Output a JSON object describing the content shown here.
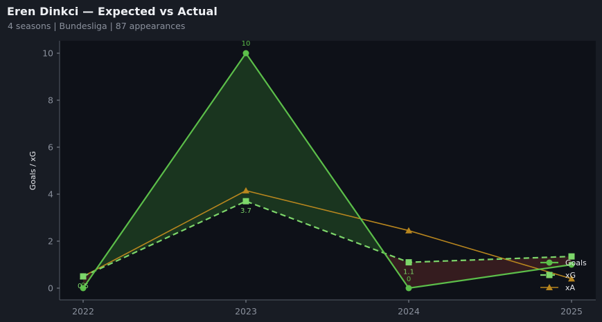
{
  "header": {
    "title": "Eren Dinkci — Expected vs Actual",
    "subtitle": "4 seasons | Bundesliga | 87 appearances"
  },
  "colors": {
    "goals": "#5cbf4a",
    "xg": "#7dd66a",
    "xa": "#b8861e",
    "overperform_fill": "#1c3a20",
    "underperform_fill": "#3a1e20",
    "background": "#181c24",
    "plot_background": "#0e1118"
  },
  "chart_data": {
    "type": "line",
    "title": "Eren Dinkci — Expected vs Actual",
    "subtitle": "4 seasons | Bundesliga | 87 appearances",
    "xlabel": "",
    "ylabel": "Goals / xG",
    "categories": [
      "2022",
      "2023",
      "2024",
      "2025"
    ],
    "ylim": [
      -0.5,
      10.5
    ],
    "yticks": [
      0,
      2,
      4,
      6,
      8,
      10
    ],
    "grid": false,
    "legend_position": "lower right",
    "series": [
      {
        "name": "Goals",
        "values": [
          0,
          10,
          0,
          1.0
        ],
        "style": "solid",
        "marker": "circle",
        "labels": [
          "0",
          "10",
          "0",
          ""
        ]
      },
      {
        "name": "xG",
        "values": [
          0.5,
          3.7,
          1.1,
          1.35
        ],
        "style": "dashed",
        "marker": "square",
        "labels": [
          "0.5",
          "3.7",
          "1.1",
          ""
        ]
      },
      {
        "name": "xA",
        "values": [
          0.5,
          4.15,
          2.45,
          0.4
        ],
        "style": "solid",
        "marker": "triangle",
        "labels": []
      }
    ],
    "annotations": [
      "Shaded area between Goals and xG: green where Goals > xG, red where Goals < xG"
    ]
  }
}
